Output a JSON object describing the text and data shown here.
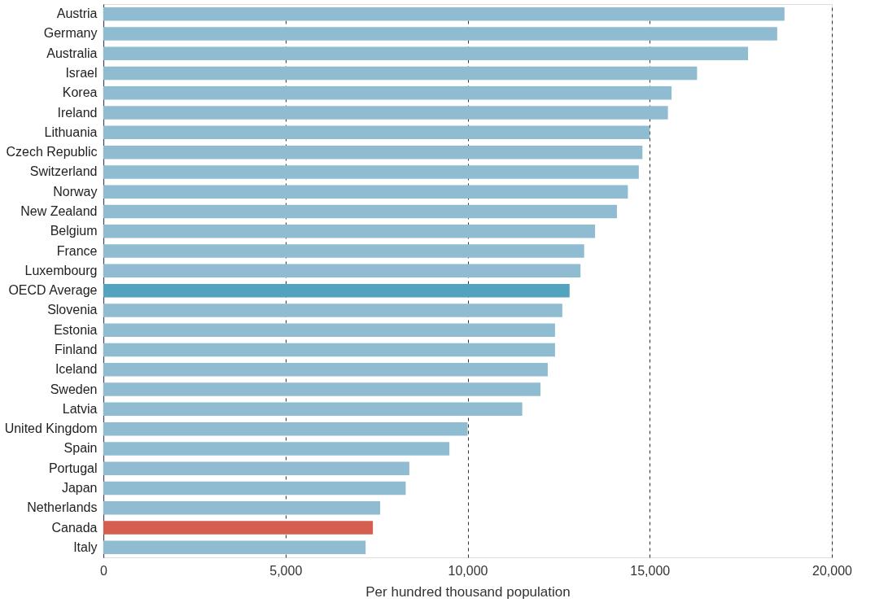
{
  "chart_data": {
    "type": "bar",
    "orientation": "horizontal",
    "xlabel": "Per hundred thousand population",
    "categories": [
      "Austria",
      "Germany",
      "Australia",
      "Israel",
      "Korea",
      "Ireland",
      "Lithuania",
      "Czech Republic",
      "Switzerland",
      "Norway",
      "New Zealand",
      "Belgium",
      "France",
      "Luxembourg",
      "OECD Average",
      "Slovenia",
      "Estonia",
      "Finland",
      "Iceland",
      "Sweden",
      "Latvia",
      "United Kingdom",
      "Spain",
      "Portugal",
      "Japan",
      "Netherlands",
      "Canada",
      "Italy"
    ],
    "values": [
      18700,
      18500,
      17700,
      16300,
      15600,
      15500,
      15000,
      14800,
      14700,
      14400,
      14100,
      13500,
      13200,
      13100,
      12800,
      12600,
      12400,
      12400,
      12200,
      12000,
      11500,
      10000,
      9500,
      8400,
      8300,
      7600,
      7400,
      7200
    ],
    "colors": [
      "#8fbcd1",
      "#8fbcd1",
      "#8fbcd1",
      "#8fbcd1",
      "#8fbcd1",
      "#8fbcd1",
      "#8fbcd1",
      "#8fbcd1",
      "#8fbcd1",
      "#8fbcd1",
      "#8fbcd1",
      "#8fbcd1",
      "#8fbcd1",
      "#8fbcd1",
      "#52a3bf",
      "#8fbcd1",
      "#8fbcd1",
      "#8fbcd1",
      "#8fbcd1",
      "#8fbcd1",
      "#8fbcd1",
      "#8fbcd1",
      "#8fbcd1",
      "#8fbcd1",
      "#8fbcd1",
      "#8fbcd1",
      "#d45f50",
      "#8fbcd1"
    ],
    "xlim": [
      0,
      20000
    ],
    "xticks": [
      0,
      {
        "value": 5000,
        "label": "5,000"
      },
      {
        "value": 10000,
        "label": "10,000"
      },
      {
        "value": 15000,
        "label": "15,000"
      },
      {
        "value": 20000,
        "label": "20,000"
      }
    ],
    "grid": "x"
  }
}
